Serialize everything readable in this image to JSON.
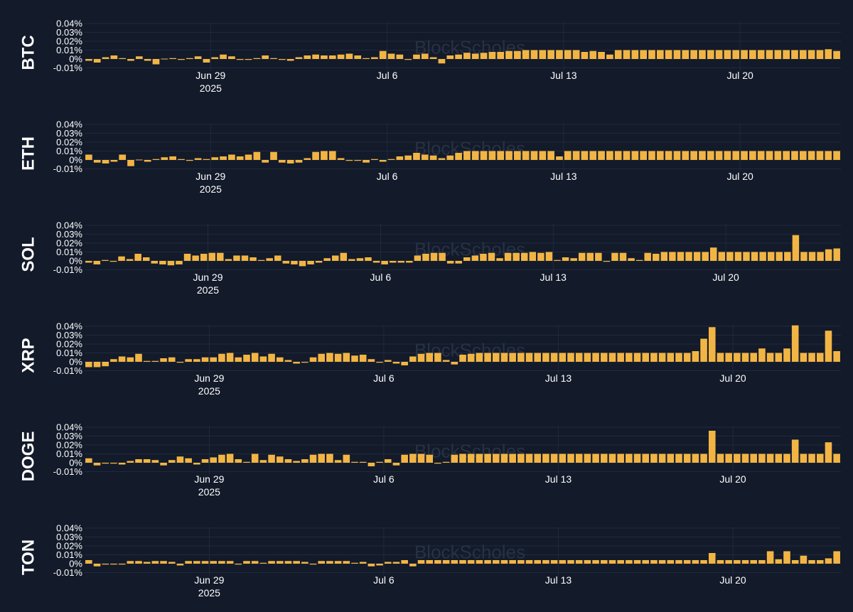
{
  "watermark": "BlockScholes",
  "colors": {
    "background": "#131a2a",
    "bar": "#f2b544",
    "grid": "#1f2a3d",
    "text": "#ffffff",
    "watermark": "#2a3447"
  },
  "chart_data": [
    {
      "type": "bar",
      "title": "BTC",
      "x_start": "2025-06-24",
      "x_interval_hours": 8,
      "ylim": [
        -0.01,
        0.04
      ],
      "y_ticks": [
        "0.04%",
        "0.03%",
        "0.02%",
        "0.01%",
        "0%",
        "-0.01%"
      ],
      "x_ticks": [
        {
          "label": "Jun 29",
          "sub": "2025",
          "date": "2025-06-29"
        },
        {
          "label": "Jul 6",
          "sub": "",
          "date": "2025-07-06"
        },
        {
          "label": "Jul 13",
          "sub": "",
          "date": "2025-07-13"
        },
        {
          "label": "Jul 20",
          "sub": "",
          "date": "2025-07-20"
        }
      ],
      "grid": true,
      "values": [
        -0.002,
        -0.004,
        0.002,
        0.004,
        0.001,
        -0.002,
        0.003,
        -0.002,
        -0.006,
        0,
        0.001,
        -0.001,
        0.001,
        0.003,
        -0.004,
        0.002,
        0.005,
        0.003,
        -0.001,
        -0.001,
        0.001,
        0.004,
        0.001,
        -0.001,
        -0.002,
        0.002,
        0.004,
        0.005,
        0.004,
        0.004,
        0.005,
        0.006,
        0.004,
        0.001,
        0.002,
        0.009,
        0.006,
        0.005,
        -0.001,
        0.005,
        0.006,
        0.002,
        -0.005,
        0.004,
        0.005,
        0.007,
        0.006,
        0.007,
        0.008,
        0.008,
        0.009,
        0.009,
        0.01,
        0.01,
        0.01,
        0.01,
        0.01,
        0.01,
        0.01,
        0.008,
        0.009,
        0.008,
        0.005,
        0.01,
        0.01,
        0.01,
        0.01,
        0.01,
        0.01,
        0.01,
        0.01,
        0.01,
        0.01,
        0.01,
        0.01,
        0.01,
        0.01,
        0.01,
        0.01,
        0.01,
        0.01,
        0.01,
        0.01,
        0.01,
        0.01,
        0.01,
        0.01,
        0.01,
        0.011,
        0.009
      ]
    },
    {
      "type": "bar",
      "title": "ETH",
      "x_start": "2025-06-24",
      "x_interval_hours": 8,
      "ylim": [
        -0.01,
        0.04
      ],
      "y_ticks": [
        "0.04%",
        "0.03%",
        "0.02%",
        "0.01%",
        "0%",
        "-0.01%"
      ],
      "x_ticks": [
        {
          "label": "Jun 29",
          "sub": "2025",
          "date": "2025-06-29"
        },
        {
          "label": "Jul 6",
          "sub": "",
          "date": "2025-07-06"
        },
        {
          "label": "Jul 13",
          "sub": "",
          "date": "2025-07-13"
        },
        {
          "label": "Jul 20",
          "sub": "",
          "date": "2025-07-20"
        }
      ],
      "grid": true,
      "values": [
        0.006,
        -0.003,
        -0.004,
        -0.002,
        0.006,
        -0.007,
        0,
        -0.002,
        0.001,
        0.003,
        0.004,
        0.001,
        -0.001,
        0.002,
        0.001,
        0.003,
        0.004,
        0.006,
        0.004,
        0.006,
        0.009,
        -0.003,
        0.009,
        -0.003,
        -0.004,
        -0.003,
        0.002,
        0.009,
        0.01,
        0.01,
        0.002,
        -0.001,
        -0.001,
        -0.003,
        0.001,
        -0.002,
        0.001,
        0.004,
        0.005,
        0.008,
        0.006,
        0.005,
        0.002,
        0.005,
        0.008,
        0.01,
        0.01,
        0.01,
        0.01,
        0.01,
        0.01,
        0.01,
        0.01,
        0.01,
        0.01,
        0.01,
        0.004,
        0.01,
        0.01,
        0.01,
        0.01,
        0.01,
        0.01,
        0.01,
        0.01,
        0.01,
        0.01,
        0.01,
        0.01,
        0.01,
        0.01,
        0.01,
        0.01,
        0.01,
        0.01,
        0.01,
        0.01,
        0.01,
        0.01,
        0.01,
        0.01,
        0.01,
        0.01,
        0.01,
        0.01,
        0.01,
        0.01,
        0.01,
        0.01,
        0.01
      ]
    },
    {
      "type": "bar",
      "title": "SOL",
      "x_start": "2025-06-24",
      "x_interval_hours": 8,
      "ylim": [
        -0.01,
        0.04
      ],
      "y_ticks": [
        "0.04%",
        "0.03%",
        "0.02%",
        "0.01%",
        "0%",
        "-0.01%"
      ],
      "x_ticks": [
        {
          "label": "Jun 29",
          "sub": "2025",
          "date": "2025-06-29"
        },
        {
          "label": "Jul 6",
          "sub": "",
          "date": "2025-07-06"
        },
        {
          "label": "Jul 13",
          "sub": "",
          "date": "2025-07-13"
        },
        {
          "label": "Jul 20",
          "sub": "",
          "date": "2025-07-20"
        }
      ],
      "grid": true,
      "values": [
        -0.002,
        -0.004,
        0.001,
        -0.001,
        0.005,
        0.002,
        0.008,
        0.004,
        -0.003,
        -0.004,
        -0.005,
        -0.004,
        0.008,
        0.006,
        0.008,
        0.009,
        0.009,
        0.002,
        0.006,
        0.006,
        0.004,
        0.001,
        0.003,
        0.006,
        -0.003,
        -0.004,
        -0.006,
        -0.004,
        -0.002,
        0.003,
        0.006,
        0.009,
        0.002,
        0.003,
        0.004,
        -0.002,
        -0.004,
        -0.002,
        -0.002,
        -0.002,
        0.006,
        0.008,
        0.009,
        0.009,
        -0.003,
        -0.003,
        0.004,
        0.006,
        0.008,
        0.009,
        0.003,
        0.009,
        0.009,
        0.009,
        0.01,
        0.009,
        0.01,
        0.001,
        0.004,
        0.003,
        0.009,
        0.009,
        0.009,
        -0.001,
        0.009,
        0.009,
        0.003,
        0.001,
        0.009,
        0.008,
        0.01,
        0.01,
        0.01,
        0.01,
        0.01,
        0.01,
        0.015,
        0.01,
        0.01,
        0.01,
        0.01,
        0.01,
        0.01,
        0.01,
        0.01,
        0.01,
        0.029,
        0.01,
        0.01,
        0.01,
        0.013,
        0.014
      ]
    },
    {
      "type": "bar",
      "title": "XRP",
      "x_start": "2025-06-24",
      "x_interval_hours": 8,
      "ylim": [
        -0.01,
        0.04
      ],
      "y_ticks": [
        "0.04%",
        "0.03%",
        "0.02%",
        "0.01%",
        "0%",
        "-0.01%"
      ],
      "x_ticks": [
        {
          "label": "Jun 29",
          "sub": "2025",
          "date": "2025-06-29"
        },
        {
          "label": "Jul 6",
          "sub": "",
          "date": "2025-07-06"
        },
        {
          "label": "Jul 13",
          "sub": "",
          "date": "2025-07-13"
        },
        {
          "label": "Jul 20",
          "sub": "",
          "date": "2025-07-20"
        }
      ],
      "grid": true,
      "values": [
        -0.006,
        -0.006,
        -0.005,
        0.003,
        0.006,
        0.005,
        0.009,
        0.001,
        0.001,
        0.004,
        0.005,
        -0.001,
        0.003,
        0.003,
        0.005,
        0.005,
        0.009,
        0.01,
        0.005,
        0.008,
        0.01,
        0.006,
        0.009,
        0.005,
        0.002,
        -0.002,
        -0.001,
        0.005,
        0.009,
        0.01,
        0.009,
        0.01,
        0.007,
        0.008,
        0.003,
        -0.001,
        0.002,
        -0.002,
        -0.004,
        0.006,
        0.009,
        0.01,
        0.01,
        0.002,
        -0.003,
        0.008,
        0.009,
        0.01,
        0.01,
        0.01,
        0.01,
        0.01,
        0.01,
        0.01,
        0.01,
        0.01,
        0.01,
        0.01,
        0.01,
        0.01,
        0.01,
        0.01,
        0.01,
        0.01,
        0.01,
        0.01,
        0.01,
        0.01,
        0.01,
        0.01,
        0.01,
        0.01,
        0.01,
        0.012,
        0.026,
        0.039,
        0.01,
        0.01,
        0.01,
        0.01,
        0.01,
        0.015,
        0.01,
        0.01,
        0.015,
        0.041,
        0.01,
        0.01,
        0.01,
        0.035,
        0.012
      ]
    },
    {
      "type": "bar",
      "title": "DOGE",
      "x_start": "2025-06-24",
      "x_interval_hours": 8,
      "ylim": [
        -0.01,
        0.04
      ],
      "y_ticks": [
        "0.04%",
        "0.03%",
        "0.02%",
        "0.01%",
        "0%",
        "-0.01%"
      ],
      "x_ticks": [
        {
          "label": "Jun 29",
          "sub": "2025",
          "date": "2025-06-29"
        },
        {
          "label": "Jul 6",
          "sub": "",
          "date": "2025-07-06"
        },
        {
          "label": "Jul 13",
          "sub": "",
          "date": "2025-07-13"
        },
        {
          "label": "Jul 20",
          "sub": "",
          "date": "2025-07-20"
        }
      ],
      "grid": true,
      "values": [
        0.005,
        -0.003,
        -0.001,
        -0.001,
        -0.002,
        0.002,
        0.004,
        0.004,
        0.003,
        -0.003,
        0.003,
        0.007,
        0.005,
        -0.002,
        0.004,
        0.006,
        0.009,
        0.01,
        0.004,
        0.001,
        0.01,
        0.003,
        0.009,
        0.007,
        0.004,
        0.002,
        0.004,
        0.009,
        0.01,
        0.01,
        0.003,
        0.009,
        0.001,
        0.001,
        -0.004,
        0.001,
        0.004,
        -0.003,
        0.009,
        0.01,
        0.01,
        0.009,
        -0.001,
        0.001,
        0.009,
        0.01,
        0.01,
        0.01,
        0.01,
        0.01,
        0.01,
        0.01,
        0.01,
        0.01,
        0.01,
        0.01,
        0.01,
        0.01,
        0.01,
        0.01,
        0.01,
        0.01,
        0.01,
        0.01,
        0.01,
        0.01,
        0.01,
        0.01,
        0.01,
        0.01,
        0.01,
        0.01,
        0.01,
        0.01,
        0.01,
        0.036,
        0.01,
        0.01,
        0.01,
        0.01,
        0.01,
        0.01,
        0.01,
        0.01,
        0.01,
        0.026,
        0.01,
        0.01,
        0.01,
        0.023,
        0.01
      ]
    },
    {
      "type": "bar",
      "title": "TON",
      "x_start": "2025-06-24",
      "x_interval_hours": 8,
      "ylim": [
        -0.01,
        0.04
      ],
      "y_ticks": [
        "0.04%",
        "0.03%",
        "0.02%",
        "0.01%",
        "0%",
        "-0.01%"
      ],
      "x_ticks": [
        {
          "label": "Jun 29",
          "sub": "2025",
          "date": "2025-06-29"
        },
        {
          "label": "Jul 6",
          "sub": "",
          "date": "2025-07-06"
        },
        {
          "label": "Jul 13",
          "sub": "",
          "date": "2025-07-13"
        },
        {
          "label": "Jul 20",
          "sub": "",
          "date": "2025-07-20"
        }
      ],
      "grid": true,
      "values": [
        0.004,
        -0.003,
        -0.001,
        -0.001,
        -0.001,
        0.003,
        0.003,
        0.002,
        0.003,
        0.003,
        0.002,
        -0.002,
        0.003,
        0.003,
        0.003,
        0.003,
        0.003,
        0.003,
        -0.001,
        0.003,
        0.003,
        0.001,
        0.003,
        0.003,
        0.003,
        0.003,
        0.002,
        -0.001,
        0.003,
        0.003,
        0.003,
        0.003,
        0.001,
        0.002,
        -0.003,
        -0.002,
        0.002,
        0.002,
        0.004,
        -0.003,
        0.004,
        0.004,
        0.004,
        0.004,
        0.004,
        0.004,
        0.004,
        0.004,
        0.004,
        0.004,
        0.004,
        0.004,
        0.004,
        0.004,
        0.004,
        0.004,
        0.004,
        0.004,
        0.004,
        0.004,
        0.004,
        0.004,
        0.004,
        0.004,
        0.004,
        0.004,
        0.004,
        0.004,
        0.004,
        0.004,
        0.004,
        0.004,
        0.004,
        0.004,
        0.004,
        0.012,
        0.004,
        0.004,
        0.004,
        0.004,
        0.004,
        0.004,
        0.014,
        0.005,
        0.014,
        0.004,
        0.009,
        0.004,
        0.004,
        0.006,
        0.014
      ]
    }
  ]
}
